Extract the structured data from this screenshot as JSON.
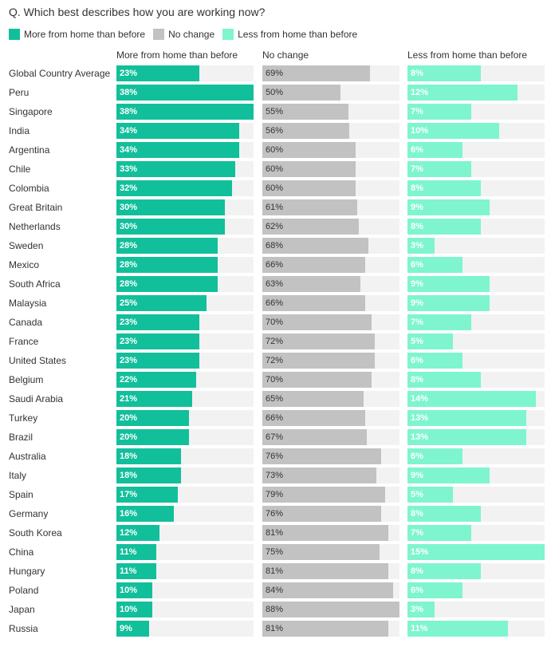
{
  "question": "Q. Which best describes how you are working now?",
  "colors": {
    "more": "#12bf9b",
    "nochange": "#c2c2c2",
    "less": "#7ef5cf",
    "track": "#f2f2f2"
  },
  "chart_data": {
    "type": "bar",
    "orientation": "horizontal",
    "legend": [
      {
        "key": "more",
        "label": "More from home than before"
      },
      {
        "key": "nochange",
        "label": "No change"
      },
      {
        "key": "less",
        "label": "Less from home than before"
      }
    ],
    "series": [
      {
        "key": "more",
        "name": "More from home than before",
        "max": 38,
        "values": [
          23,
          38,
          38,
          34,
          34,
          33,
          32,
          30,
          30,
          28,
          28,
          28,
          25,
          23,
          23,
          23,
          22,
          21,
          20,
          20,
          18,
          18,
          17,
          16,
          12,
          11,
          11,
          10,
          10,
          9
        ]
      },
      {
        "key": "nochange",
        "name": "No change",
        "max": 88,
        "values": [
          69,
          50,
          55,
          56,
          60,
          60,
          60,
          61,
          62,
          68,
          66,
          63,
          66,
          70,
          72,
          72,
          70,
          65,
          66,
          67,
          76,
          73,
          79,
          76,
          81,
          75,
          81,
          84,
          88,
          81
        ]
      },
      {
        "key": "less",
        "name": "Less from home than before",
        "max": 15,
        "values": [
          8,
          12,
          7,
          10,
          6,
          7,
          8,
          9,
          8,
          3,
          6,
          9,
          9,
          7,
          5,
          6,
          8,
          14,
          13,
          13,
          6,
          9,
          5,
          8,
          7,
          15,
          8,
          6,
          3,
          11
        ]
      }
    ],
    "categories": [
      "Global Country Average",
      "Peru",
      "Singapore",
      "India",
      "Argentina",
      "Chile",
      "Colombia",
      "Great Britain",
      "Netherlands",
      "Sweden",
      "Mexico",
      "South Africa",
      "Malaysia",
      "Canada",
      "France",
      "United States",
      "Belgium",
      "Saudi Arabia",
      "Turkey",
      "Brazil",
      "Australia",
      "Italy",
      "Spain",
      "Germany",
      "South Korea",
      "China",
      "Hungary",
      "Poland",
      "Japan",
      "Russia"
    ],
    "value_suffix": "%"
  }
}
